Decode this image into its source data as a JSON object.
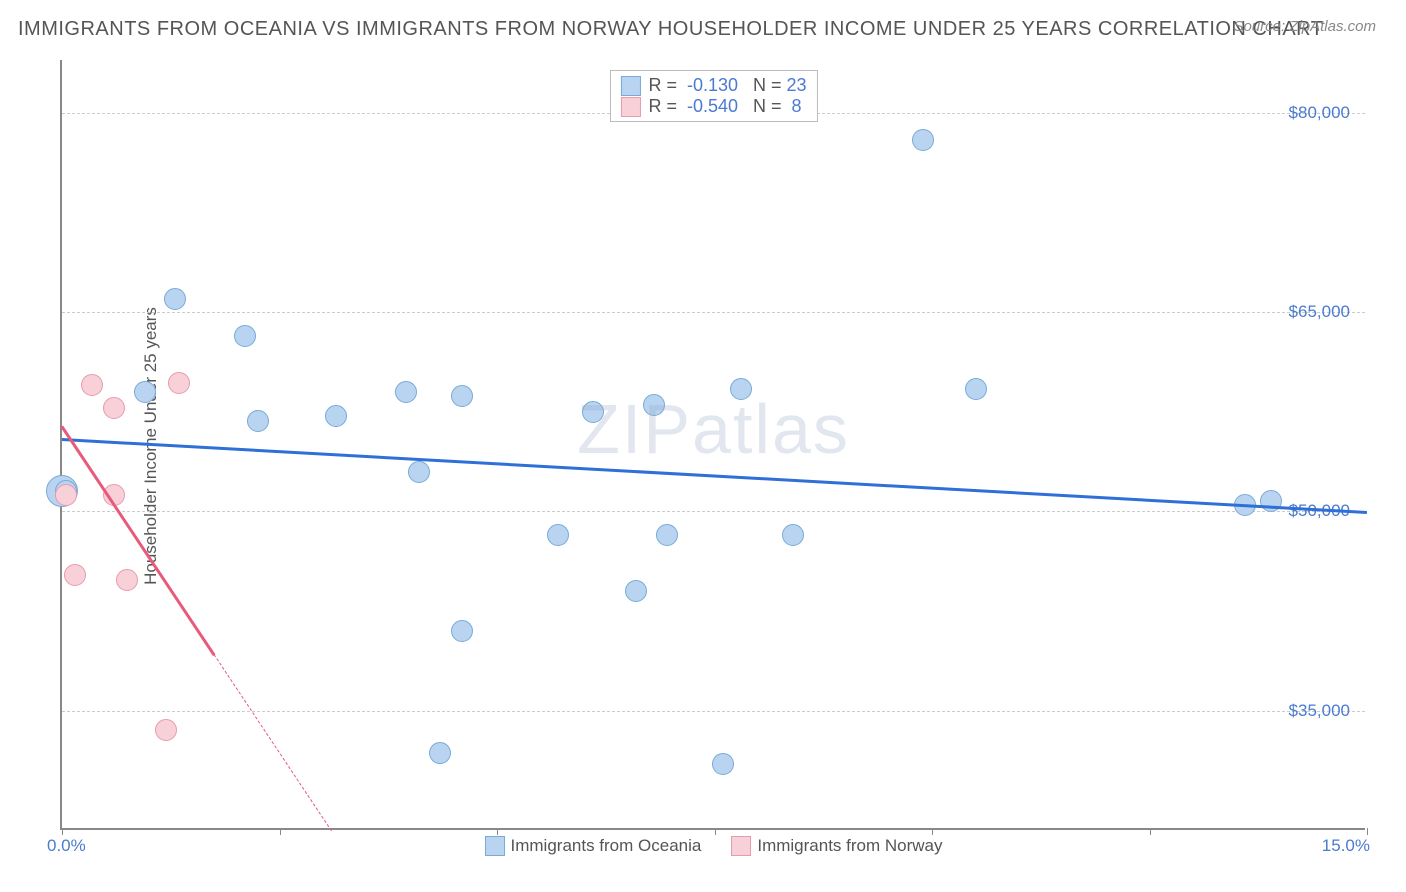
{
  "title": "IMMIGRANTS FROM OCEANIA VS IMMIGRANTS FROM NORWAY HOUSEHOLDER INCOME UNDER 25 YEARS CORRELATION CHART",
  "source": "Source: ZipAtlas.com",
  "y_label": "Householder Income Under 25 years",
  "watermark": "ZIPatlas",
  "x_axis": {
    "min_label": "0.0%",
    "max_label": "15.0%",
    "min": 0.0,
    "max": 15.0,
    "ticks": [
      0,
      2.5,
      5.0,
      7.5,
      10.0,
      12.5,
      15.0
    ]
  },
  "y_axis": {
    "min": 26000,
    "max": 84000,
    "ticks": [
      {
        "value": 35000,
        "label": "$35,000"
      },
      {
        "value": 50000,
        "label": "$50,000"
      },
      {
        "value": 65000,
        "label": "$65,000"
      },
      {
        "value": 80000,
        "label": "$80,000"
      }
    ]
  },
  "series": [
    {
      "id": "oceania",
      "name": "Immigrants from Oceania",
      "color_fill": "#b8d4f0",
      "color_stroke": "#7aaad8",
      "line_color": "#2e6fd8",
      "marker_radius": 11,
      "R": "-0.130",
      "N": "23",
      "trend": {
        "x1": 0.0,
        "y1": 55500,
        "x2": 15.0,
        "y2": 50000,
        "solid_x_end": 15.0
      },
      "points": [
        {
          "x": 0.0,
          "y": 51500,
          "r": 16
        },
        {
          "x": 0.95,
          "y": 59000
        },
        {
          "x": 0.05,
          "y": 51500
        },
        {
          "x": 1.3,
          "y": 66000
        },
        {
          "x": 2.1,
          "y": 63200
        },
        {
          "x": 2.25,
          "y": 56800
        },
        {
          "x": 3.15,
          "y": 57200
        },
        {
          "x": 3.95,
          "y": 59000
        },
        {
          "x": 4.1,
          "y": 53000
        },
        {
          "x": 4.35,
          "y": 31800
        },
        {
          "x": 4.6,
          "y": 41000
        },
        {
          "x": 4.6,
          "y": 58700
        },
        {
          "x": 5.7,
          "y": 48200
        },
        {
          "x": 6.1,
          "y": 57500
        },
        {
          "x": 6.6,
          "y": 44000
        },
        {
          "x": 6.8,
          "y": 58000
        },
        {
          "x": 6.95,
          "y": 48200
        },
        {
          "x": 7.6,
          "y": 31000
        },
        {
          "x": 7.8,
          "y": 59200
        },
        {
          "x": 8.4,
          "y": 48200
        },
        {
          "x": 9.9,
          "y": 78000
        },
        {
          "x": 10.5,
          "y": 59200
        },
        {
          "x": 13.6,
          "y": 50500
        },
        {
          "x": 13.9,
          "y": 50800
        }
      ]
    },
    {
      "id": "norway",
      "name": "Immigrants from Norway",
      "color_fill": "#f8d0d8",
      "color_stroke": "#e89ab0",
      "line_color": "#e85a7a",
      "marker_radius": 11,
      "R": "-0.540",
      "N": "8",
      "trend": {
        "x1": 0.0,
        "y1": 56500,
        "x2": 3.1,
        "y2": 26000,
        "solid_x_end": 1.75
      },
      "points": [
        {
          "x": 0.05,
          "y": 51200
        },
        {
          "x": 0.15,
          "y": 45200
        },
        {
          "x": 0.35,
          "y": 59500
        },
        {
          "x": 0.6,
          "y": 51200
        },
        {
          "x": 0.6,
          "y": 57800
        },
        {
          "x": 0.75,
          "y": 44800
        },
        {
          "x": 1.2,
          "y": 33500
        },
        {
          "x": 1.35,
          "y": 59700
        }
      ]
    }
  ],
  "legend_top_labels": {
    "R_prefix": "R =",
    "N_prefix": "N ="
  }
}
